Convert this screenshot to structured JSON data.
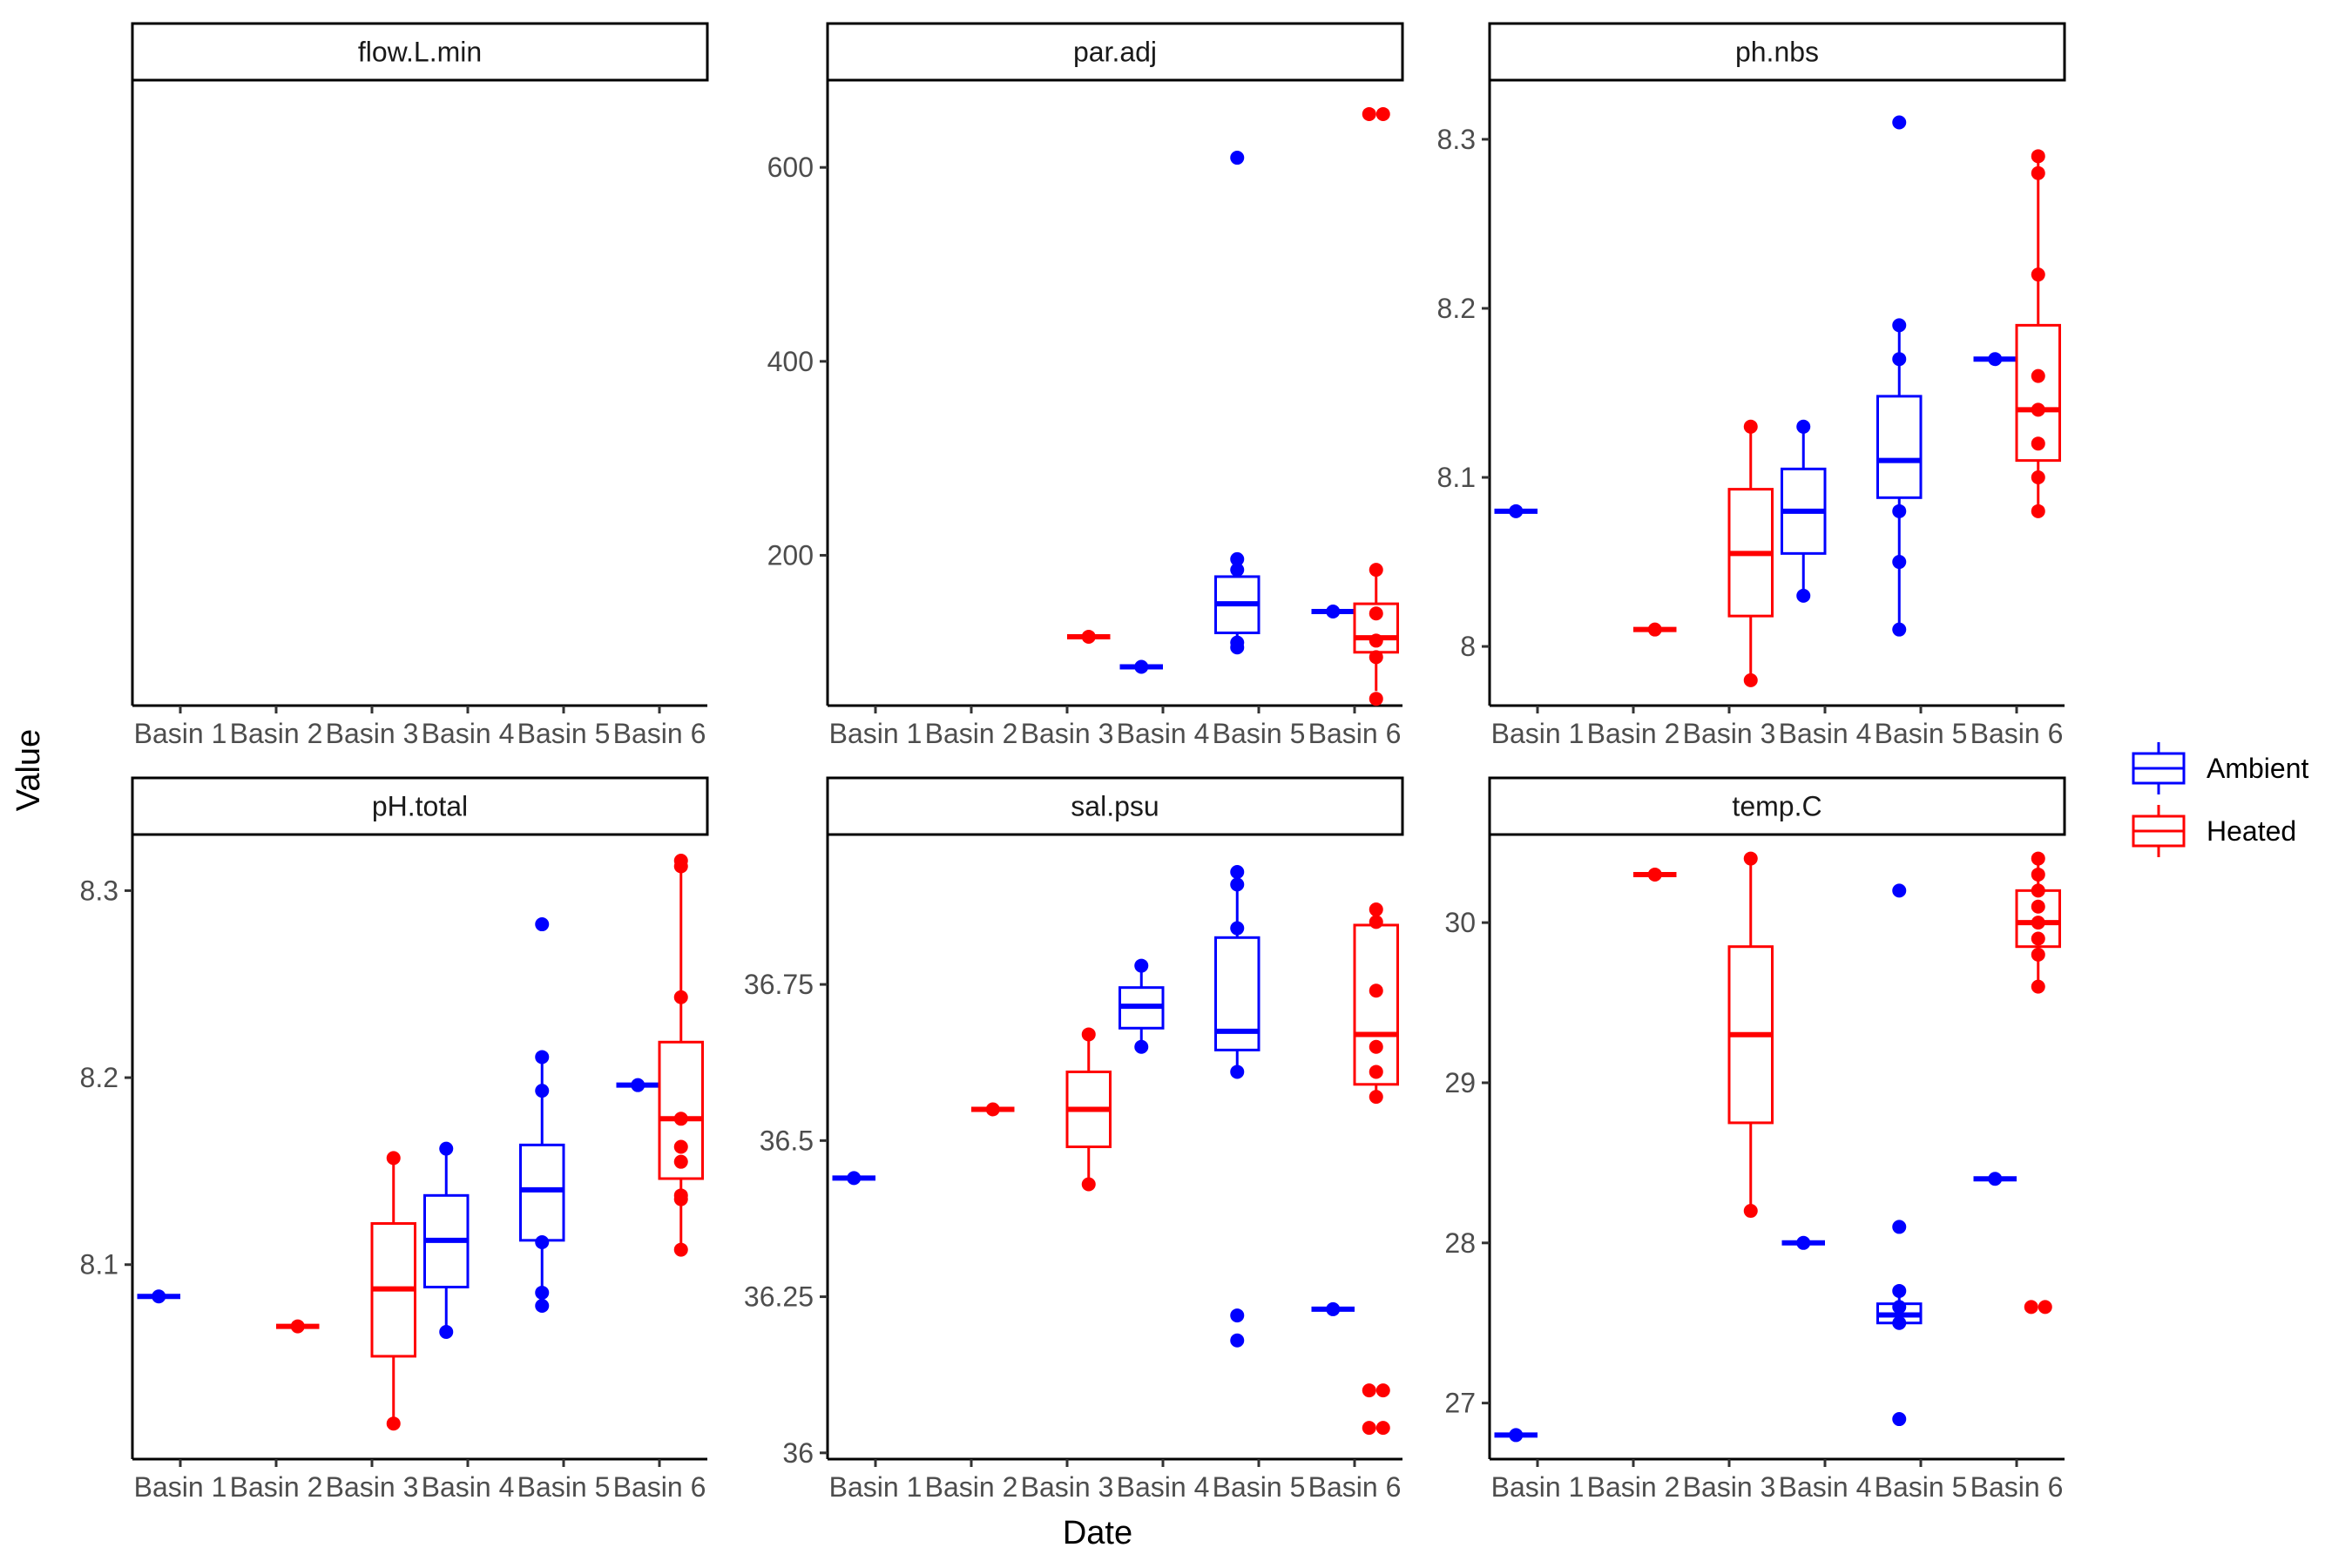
{
  "chart_data": {
    "type": "boxplot",
    "xlabel": "Date",
    "ylabel": "Value",
    "categories": [
      "Basin 1",
      "Basin 2",
      "Basin 3",
      "Basin 4",
      "Basin 5",
      "Basin 6"
    ],
    "legend": {
      "position": "right",
      "entries": [
        {
          "name": "Ambient",
          "color": "#0000ff"
        },
        {
          "name": "Heated",
          "color": "#ff0000"
        }
      ]
    },
    "grid": false,
    "panels": [
      {
        "title": "flow.L.min",
        "ylim": [
          0,
          1
        ],
        "yticks": [],
        "boxes": []
      },
      {
        "title": "par.adj",
        "ylim": [
          45,
          690
        ],
        "yticks": [
          200,
          400,
          600
        ],
        "boxes": [
          {
            "cat": "Basin 3",
            "group": "Heated",
            "stats": [
              116,
              116,
              116,
              116,
              116
            ],
            "points": [
              116
            ]
          },
          {
            "cat": "Basin 4",
            "group": "Ambient",
            "stats": [
              85,
              85,
              85,
              85,
              85
            ],
            "points": [
              85
            ]
          },
          {
            "cat": "Basin 5",
            "group": "Ambient",
            "stats": [
              105,
              120,
              150,
              178,
              196
            ],
            "points": [
              105,
              110,
              185,
              196,
              610
            ]
          },
          {
            "cat": "Basin 6",
            "group": "Ambient",
            "stats": [
              142,
              142,
              142,
              142,
              142
            ],
            "points": [
              142
            ]
          },
          {
            "cat": "Basin 6",
            "group": "Heated",
            "stats": [
              60,
              100,
              115,
              150,
              185
            ],
            "points": [
              52,
              95,
              112,
              140,
              185,
              655,
              655
            ]
          }
        ]
      },
      {
        "title": "ph.nbs",
        "ylim": [
          7.965,
          8.335
        ],
        "yticks": [
          8.0,
          8.1,
          8.2,
          8.3
        ],
        "boxes": [
          {
            "cat": "Basin 1",
            "group": "Ambient",
            "stats": [
              8.08,
              8.08,
              8.08,
              8.08,
              8.08
            ],
            "points": [
              8.08
            ]
          },
          {
            "cat": "Basin 2",
            "group": "Heated",
            "stats": [
              8.01,
              8.01,
              8.01,
              8.01,
              8.01
            ],
            "points": [
              8.01
            ]
          },
          {
            "cat": "Basin 3",
            "group": "Heated",
            "stats": [
              7.98,
              8.018,
              8.055,
              8.093,
              8.13
            ],
            "points": [
              7.98,
              8.13
            ]
          },
          {
            "cat": "Basin 4",
            "group": "Ambient",
            "stats": [
              8.03,
              8.055,
              8.08,
              8.105,
              8.13
            ],
            "points": [
              8.03,
              8.13
            ]
          },
          {
            "cat": "Basin 5",
            "group": "Ambient",
            "stats": [
              8.01,
              8.088,
              8.11,
              8.148,
              8.19
            ],
            "points": [
              8.01,
              8.05,
              8.08,
              8.17,
              8.19,
              8.31
            ]
          },
          {
            "cat": "Basin 6",
            "group": "Ambient",
            "stats": [
              8.17,
              8.17,
              8.17,
              8.17,
              8.17
            ],
            "points": [
              8.17
            ]
          },
          {
            "cat": "Basin 6",
            "group": "Heated",
            "stats": [
              8.08,
              8.11,
              8.14,
              8.19,
              8.29
            ],
            "points": [
              8.08,
              8.1,
              8.12,
              8.14,
              8.16,
              8.22,
              8.28,
              8.29
            ]
          }
        ]
      },
      {
        "title": "pH.total",
        "ylim": [
          7.996,
          8.33
        ],
        "yticks": [
          8.1,
          8.2,
          8.3
        ],
        "boxes": [
          {
            "cat": "Basin 1",
            "group": "Ambient",
            "stats": [
              8.083,
              8.083,
              8.083,
              8.083,
              8.083
            ],
            "points": [
              8.083
            ]
          },
          {
            "cat": "Basin 2",
            "group": "Heated",
            "stats": [
              8.067,
              8.067,
              8.067,
              8.067,
              8.067
            ],
            "points": [
              8.067
            ]
          },
          {
            "cat": "Basin 3",
            "group": "Heated",
            "stats": [
              8.015,
              8.051,
              8.087,
              8.122,
              8.157
            ],
            "points": [
              8.015,
              8.157
            ]
          },
          {
            "cat": "Basin 4",
            "group": "Ambient",
            "stats": [
              8.064,
              8.088,
              8.113,
              8.137,
              8.162
            ],
            "points": [
              8.064,
              8.162
            ]
          },
          {
            "cat": "Basin 5",
            "group": "Ambient",
            "stats": [
              8.078,
              8.113,
              8.14,
              8.164,
              8.211
            ],
            "points": [
              8.078,
              8.085,
              8.112,
              8.193,
              8.211,
              8.282
            ]
          },
          {
            "cat": "Basin 6",
            "group": "Ambient",
            "stats": [
              8.196,
              8.196,
              8.196,
              8.196,
              8.196
            ],
            "points": [
              8.196
            ]
          },
          {
            "cat": "Basin 6",
            "group": "Heated",
            "stats": [
              8.108,
              8.146,
              8.178,
              8.219,
              8.316
            ],
            "points": [
              8.108,
              8.135,
              8.137,
              8.155,
              8.163,
              8.178,
              8.243,
              8.313,
              8.316
            ]
          }
        ]
      },
      {
        "title": "sal.psu",
        "ylim": [
          35.99,
          36.99
        ],
        "yticks": [
          36.0,
          36.25,
          36.5,
          36.75
        ],
        "boxes": [
          {
            "cat": "Basin 1",
            "group": "Ambient",
            "stats": [
              36.44,
              36.44,
              36.44,
              36.44,
              36.44
            ],
            "points": [
              36.44
            ]
          },
          {
            "cat": "Basin 2",
            "group": "Heated",
            "stats": [
              36.55,
              36.55,
              36.55,
              36.55,
              36.55
            ],
            "points": [
              36.55
            ]
          },
          {
            "cat": "Basin 3",
            "group": "Heated",
            "stats": [
              36.43,
              36.49,
              36.55,
              36.61,
              36.67
            ],
            "points": [
              36.43,
              36.67
            ]
          },
          {
            "cat": "Basin 4",
            "group": "Ambient",
            "stats": [
              36.65,
              36.68,
              36.715,
              36.745,
              36.78
            ],
            "points": [
              36.65,
              36.78
            ]
          },
          {
            "cat": "Basin 5",
            "group": "Ambient",
            "stats": [
              36.61,
              36.645,
              36.675,
              36.825,
              36.93
            ],
            "points": [
              36.18,
              36.22,
              36.61,
              36.84,
              36.91,
              36.93
            ]
          },
          {
            "cat": "Basin 6",
            "group": "Ambient",
            "stats": [
              36.23,
              36.23,
              36.23,
              36.23,
              36.23
            ],
            "points": [
              36.23
            ]
          },
          {
            "cat": "Basin 6",
            "group": "Heated",
            "stats": [
              36.57,
              36.59,
              36.67,
              36.845,
              36.87
            ],
            "points": [
              36.04,
              36.04,
              36.1,
              36.1,
              36.57,
              36.61,
              36.65,
              36.74,
              36.85,
              36.87
            ]
          }
        ]
      },
      {
        "title": "temp.C",
        "ylim": [
          26.65,
          30.55
        ],
        "yticks": [
          27,
          28,
          29,
          30
        ],
        "boxes": [
          {
            "cat": "Basin 1",
            "group": "Ambient",
            "stats": [
              26.8,
              26.8,
              26.8,
              26.8,
              26.8
            ],
            "points": [
              26.8
            ]
          },
          {
            "cat": "Basin 2",
            "group": "Heated",
            "stats": [
              30.3,
              30.3,
              30.3,
              30.3,
              30.3
            ],
            "points": [
              30.3
            ]
          },
          {
            "cat": "Basin 3",
            "group": "Heated",
            "stats": [
              28.2,
              28.75,
              29.3,
              29.85,
              30.4
            ],
            "points": [
              28.2,
              30.4
            ]
          },
          {
            "cat": "Basin 4",
            "group": "Ambient",
            "stats": [
              28.0,
              28.0,
              28.0,
              28.0,
              28.0
            ],
            "points": [
              28.0
            ]
          },
          {
            "cat": "Basin 5",
            "group": "Ambient",
            "stats": [
              27.5,
              27.5,
              27.55,
              27.62,
              27.7
            ],
            "points": [
              26.9,
              27.5,
              27.6,
              27.7,
              28.1,
              30.2
            ]
          },
          {
            "cat": "Basin 6",
            "group": "Ambient",
            "stats": [
              28.4,
              28.4,
              28.4,
              28.4,
              28.4
            ],
            "points": [
              28.4
            ]
          },
          {
            "cat": "Basin 6",
            "group": "Heated",
            "stats": [
              29.6,
              29.85,
              30.0,
              30.2,
              30.4
            ],
            "points": [
              27.6,
              27.6,
              29.6,
              29.8,
              29.9,
              30.0,
              30.1,
              30.2,
              30.3,
              30.4
            ]
          }
        ]
      }
    ]
  }
}
